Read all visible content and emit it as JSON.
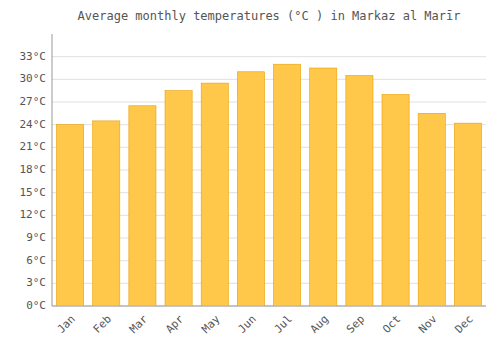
{
  "chart_data": {
    "type": "bar",
    "title": "Average monthly temperatures (°C ) in Markaz al Marīr",
    "categories": [
      "Jan",
      "Feb",
      "Mar",
      "Apr",
      "May",
      "Jun",
      "Jul",
      "Aug",
      "Sep",
      "Oct",
      "Nov",
      "Dec"
    ],
    "values": [
      24.0,
      24.5,
      26.5,
      28.5,
      29.5,
      31.0,
      32.0,
      31.5,
      30.5,
      28.0,
      25.5,
      24.2
    ],
    "color": "#FFC84A",
    "ylim": [
      0,
      36
    ],
    "yticks": [
      {
        "value": 0,
        "label": "0°C"
      },
      {
        "value": 3,
        "label": "3°C"
      },
      {
        "value": 6,
        "label": "6°C"
      },
      {
        "value": 9,
        "label": "9°C"
      },
      {
        "value": 12,
        "label": "12°C"
      },
      {
        "value": 15,
        "label": "15°C"
      },
      {
        "value": 18,
        "label": "18°C"
      },
      {
        "value": 21,
        "label": "21°C"
      },
      {
        "value": 24,
        "label": "24°C"
      },
      {
        "value": 27,
        "label": "27°C"
      },
      {
        "value": 30,
        "label": "30°C"
      },
      {
        "value": 33,
        "label": "33°C"
      }
    ],
    "grid": true
  }
}
